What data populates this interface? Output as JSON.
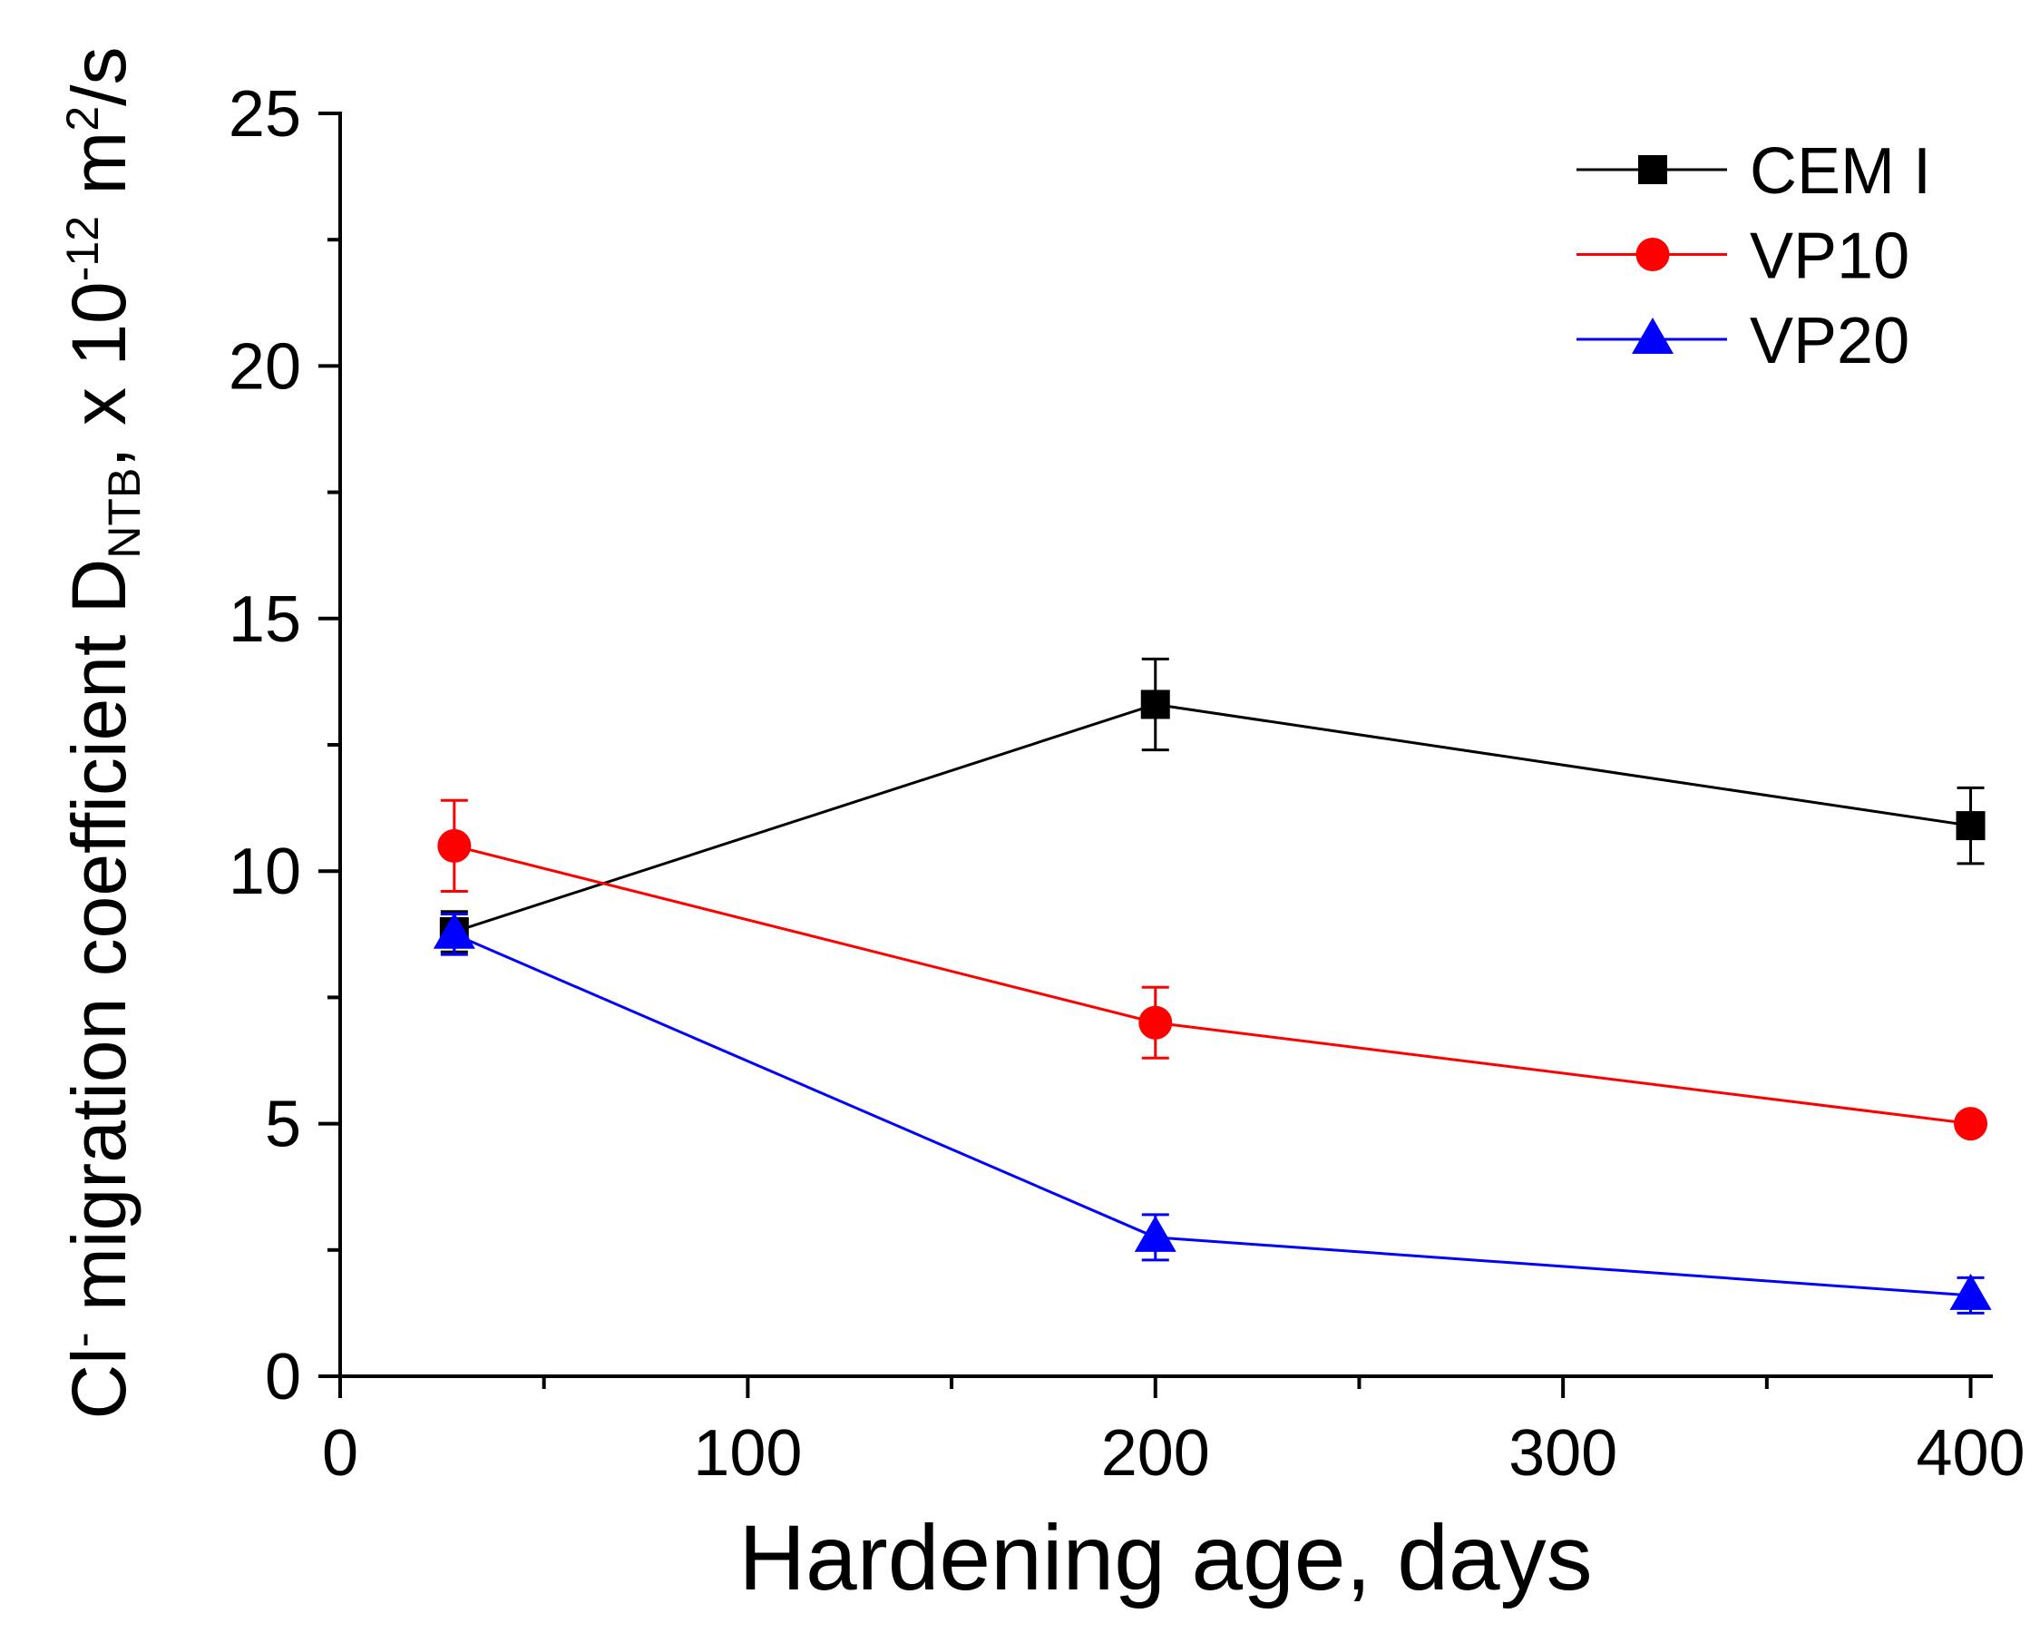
{
  "chart_data": {
    "type": "line",
    "xlabel": "Hardening age, days",
    "ylabel": {
      "t1": "Cl",
      "sup1": "-",
      "t2": " migration coefficient D",
      "sub1": "NTB",
      "t3": ", x 10",
      "sup2": "-12",
      "t4": " m",
      "sup3": "2",
      "t5": "/s"
    },
    "xlim": [
      0,
      405
    ],
    "ylim": [
      0,
      25
    ],
    "xticks": [
      0,
      100,
      200,
      300,
      400
    ],
    "yticks": [
      0,
      5,
      10,
      15,
      20,
      25
    ],
    "grid": false,
    "legend": "top-right",
    "series": [
      {
        "name": "CEM I",
        "color": "#000000",
        "marker": "square",
        "x": [
          28,
          200,
          400
        ],
        "y": [
          8.8,
          13.3,
          10.9
        ],
        "yerr": [
          0.4,
          0.9,
          0.75
        ]
      },
      {
        "name": "VP10",
        "color": "#ff0000",
        "marker": "circle",
        "x": [
          28,
          200,
          400
        ],
        "y": [
          10.5,
          7.0,
          5.0
        ],
        "yerr": [
          0.9,
          0.7,
          0
        ]
      },
      {
        "name": "VP20",
        "color": "#0000ff",
        "marker": "triangle",
        "x": [
          28,
          200,
          400
        ],
        "y": [
          8.75,
          2.75,
          1.6
        ],
        "yerr": [
          0.4,
          0.45,
          0.35
        ]
      }
    ]
  }
}
